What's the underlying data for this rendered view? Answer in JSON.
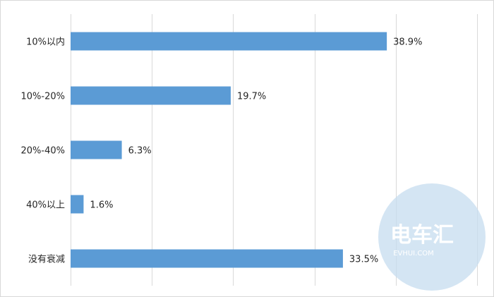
{
  "chart_data": {
    "type": "bar",
    "orientation": "horizontal",
    "categories": [
      "10%以内",
      "10%-20%",
      "20%-40%",
      "40%以上",
      "没有衰减"
    ],
    "values": [
      38.9,
      19.7,
      6.3,
      1.6,
      33.5
    ],
    "value_labels": [
      "38.9%",
      "19.7%",
      "6.3%",
      "1.6%",
      "33.5%"
    ],
    "xlim": [
      0,
      50
    ],
    "grid": "vertical",
    "bar_color": "#5b9bd5",
    "grid_color": "#d9d9d9"
  },
  "watermark": {
    "logo_text": "电车汇",
    "logo_subtext": "EVHUI.COM",
    "color": "#c5dcef"
  }
}
